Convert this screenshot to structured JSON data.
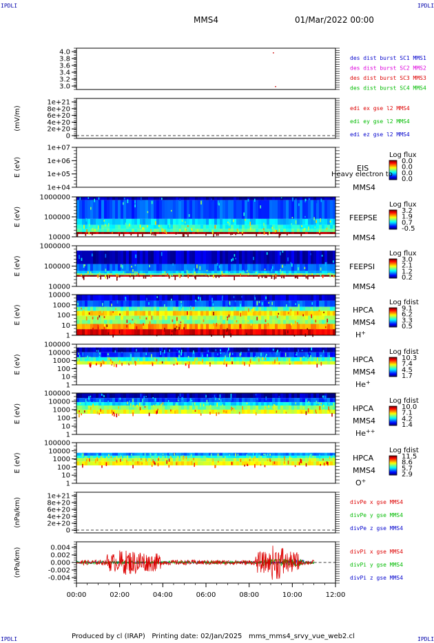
{
  "header": {
    "corner_label": "IPDLI",
    "spacecraft": "MMS4",
    "date": "01/Mar/2022 00:00"
  },
  "footer": {
    "produced_by": "Produced by cl (IRAP)",
    "printing_date": "Printing date: 02/Jan/2025",
    "file": "mms_mms4_srvy_vue_web2.cl"
  },
  "chart_data": {
    "type": "multi-panel time series / spectrogram stack",
    "x_ticks": [
      "00:00",
      "02:00",
      "04:00",
      "06:00",
      "08:00",
      "10:00",
      "12:00"
    ],
    "xlim_hours": [
      0,
      12
    ],
    "data_end_hours": 11.0,
    "panels": [
      {
        "id": "burst",
        "kind": "flags",
        "ylabel": "",
        "yticks": [
          "4.0",
          "3.8",
          "3.6",
          "3.4",
          "3.2",
          "3.0"
        ],
        "legend": [
          {
            "text": "des dist burst SC1 MMS1",
            "color": "#0000cc"
          },
          {
            "text": "des dist burst SC2 MMS2",
            "color": "#dd00dd"
          },
          {
            "text": "des dist burst SC3 MMS3",
            "color": "#dd0000"
          },
          {
            "text": "des dist burst SC4 MMS4",
            "color": "#00bb00"
          }
        ],
        "points": [
          {
            "t": 9.1,
            "y": 3.98,
            "color": "#cc0000"
          },
          {
            "t": 9.2,
            "y": 3.0,
            "color": "#cc0000"
          }
        ]
      },
      {
        "id": "edi",
        "kind": "line",
        "ylabel": "(mV/m)",
        "yticks": [
          "1e+21",
          "8e+20",
          "6e+20",
          "4e+20",
          "2e+20",
          "0"
        ],
        "legend": [
          {
            "text": "edi ex gse l2 MMS4",
            "color": "#dd0000"
          },
          {
            "text": "edi ey gse l2 MMS4",
            "color": "#00bb00"
          },
          {
            "text": "edi ez gse l2 MMS4",
            "color": "#0000cc"
          }
        ]
      },
      {
        "id": "eis",
        "kind": "spectrogram-empty",
        "ylabel": "E (eV)",
        "yticks": [
          "1e+07",
          "1e+06",
          "1e+05",
          "1e+04"
        ],
        "instrument": [
          "EIS",
          "MMS4"
        ],
        "overlay": "Heavy electron to",
        "cbar_title": "Log flux",
        "cbar_ticks": [
          "0.0",
          "0.0",
          "0.0",
          "0.0"
        ]
      },
      {
        "id": "feepse",
        "kind": "spectrogram",
        "ylabel": "E (eV)",
        "yticks": [
          "1000000",
          "100000",
          "10000"
        ],
        "instrument": [
          "FEEPSE",
          "MMS4"
        ],
        "cbar_title": "Log flux",
        "cbar_ticks": [
          "3.2",
          "1.9",
          "0.7",
          "-0.5"
        ],
        "bands": [
          [
            0.0,
            0.08,
            0.05
          ],
          [
            0.08,
            0.55,
            0.2
          ],
          [
            0.55,
            0.7,
            0.33
          ],
          [
            0.7,
            0.8,
            0.4
          ],
          [
            0.8,
            0.88,
            0.45
          ],
          [
            0.88,
            0.93,
            0.97
          ]
        ]
      },
      {
        "id": "feepsi",
        "kind": "spectrogram",
        "ylabel": "E (eV)",
        "yticks": [
          "1000000",
          "100000",
          "10000"
        ],
        "instrument": [
          "FEEPSI",
          "MMS4"
        ],
        "cbar_title": "Log flux",
        "cbar_ticks": [
          "3.0",
          "2.1",
          "1.2",
          "0.2"
        ],
        "bands": [
          [
            0.12,
            0.45,
            0.06
          ],
          [
            0.45,
            0.62,
            0.22
          ],
          [
            0.62,
            0.68,
            0.32
          ],
          [
            0.68,
            0.72,
            0.48
          ],
          [
            0.72,
            0.76,
            0.97
          ]
        ]
      },
      {
        "id": "hpca_h",
        "kind": "spectrogram",
        "ylabel": "E (eV)",
        "yticks": [
          "10000",
          "1000",
          "100",
          "10",
          "1"
        ],
        "instrument": [
          "HPCA",
          "MMS4",
          "H+"
        ],
        "cbar_title": "Log fdist",
        "cbar_ticks": [
          "9.1",
          "6.2",
          "3.3",
          "0.5"
        ],
        "bands": [
          [
            0.0,
            0.15,
            0.08
          ],
          [
            0.15,
            0.3,
            0.2
          ],
          [
            0.3,
            0.4,
            0.45
          ],
          [
            0.4,
            0.52,
            0.65
          ],
          [
            0.52,
            0.62,
            0.55
          ],
          [
            0.62,
            0.72,
            0.5
          ],
          [
            0.72,
            0.85,
            0.72
          ],
          [
            0.85,
            1.0,
            0.9
          ]
        ]
      },
      {
        "id": "hpca_he",
        "kind": "spectrogram",
        "ylabel": "E (eV)",
        "yticks": [
          "100000",
          "10000",
          "1000",
          "100",
          "10",
          "1"
        ],
        "instrument": [
          "HPCA",
          "MMS4",
          "He+"
        ],
        "cbar_title": "Log fdist",
        "cbar_ticks": [
          "10.3",
          "7.4",
          "4.5",
          "1.7"
        ],
        "bands": [
          [
            0.08,
            0.2,
            0.04
          ],
          [
            0.2,
            0.32,
            0.18
          ],
          [
            0.32,
            0.42,
            0.42
          ],
          [
            0.42,
            0.5,
            0.6
          ]
        ]
      },
      {
        "id": "hpca_he2",
        "kind": "spectrogram",
        "ylabel": "E (eV)",
        "yticks": [
          "100000",
          "10000",
          "1000",
          "100",
          "10",
          "1"
        ],
        "instrument": [
          "HPCA",
          "MMS4",
          "He++"
        ],
        "cbar_title": "Log fdist",
        "cbar_ticks": [
          "10.0",
          "7.1",
          "4.2",
          "1.4"
        ],
        "bands": [
          [
            0.0,
            0.12,
            0.04
          ],
          [
            0.12,
            0.22,
            0.2
          ],
          [
            0.22,
            0.3,
            0.35
          ],
          [
            0.3,
            0.4,
            0.5
          ],
          [
            0.4,
            0.5,
            0.6
          ]
        ]
      },
      {
        "id": "hpca_o",
        "kind": "spectrogram",
        "ylabel": "E (eV)",
        "yticks": [
          "100000",
          "10000",
          "1000",
          "100",
          "10",
          "1"
        ],
        "instrument": [
          "HPCA",
          "MMS4",
          "O+"
        ],
        "cbar_title": "Log fdist",
        "cbar_ticks": [
          "11.5",
          "8.6",
          "5.7",
          "2.9"
        ],
        "bands": [
          [
            0.25,
            0.32,
            0.25
          ],
          [
            0.32,
            0.38,
            0.4
          ],
          [
            0.38,
            0.46,
            0.55
          ],
          [
            0.46,
            0.56,
            0.62
          ]
        ]
      },
      {
        "id": "divpe",
        "kind": "line",
        "ylabel": "(nPa/km)",
        "yticks": [
          "1e+21",
          "8e+20",
          "6e+20",
          "4e+20",
          "2e+20",
          "0"
        ],
        "legend": [
          {
            "text": "divPe x gse MMS4",
            "color": "#dd0000"
          },
          {
            "text": "divPe y gse MMS4",
            "color": "#00bb00"
          },
          {
            "text": "divPe z gse MMS4",
            "color": "#0000cc"
          }
        ]
      },
      {
        "id": "divpi",
        "kind": "line",
        "ylabel": "(nPa/km)",
        "yticks": [
          "0.004",
          "0.002",
          "0.000",
          "-0.002",
          "-0.004"
        ],
        "ylim": [
          -0.005,
          0.005
        ],
        "legend": [
          {
            "text": "divPi x gse MMS4",
            "color": "#dd0000"
          },
          {
            "text": "divPi y gse MMS4",
            "color": "#00bb00"
          },
          {
            "text": "divPi z gse MMS4",
            "color": "#0000cc"
          }
        ]
      }
    ]
  }
}
